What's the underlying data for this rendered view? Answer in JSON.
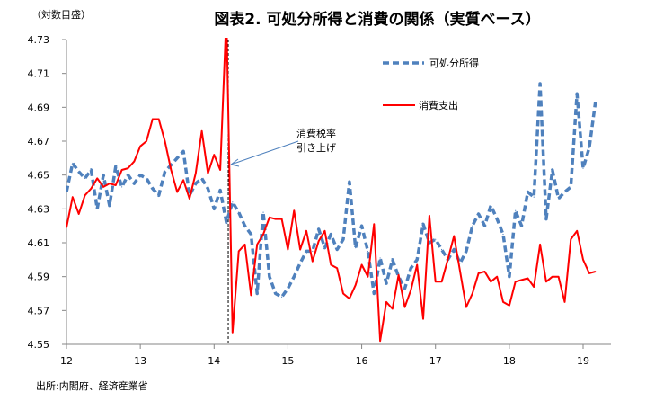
{
  "chart_data": {
    "type": "line",
    "title": "図表2. 可処分所得と消費の関係（実質ベース）",
    "ylabel": "（対数目盛）",
    "xlabel": "",
    "ylim": [
      4.55,
      4.73
    ],
    "yticks": [
      "4.55",
      "4.57",
      "4.59",
      "4.61",
      "4.63",
      "4.65",
      "4.67",
      "4.69",
      "4.71",
      "4.73"
    ],
    "xticks": [
      "12",
      "13",
      "14",
      "15",
      "16",
      "17",
      "18",
      "19"
    ],
    "x_start": "2012-01",
    "frequency": "monthly",
    "grid": false,
    "legend_position": "top-right",
    "series": [
      {
        "name": "可処分所得",
        "color": "#4F81BD",
        "style": "dashed",
        "values": [
          4.64,
          4.657,
          4.652,
          4.648,
          4.653,
          4.63,
          4.65,
          4.632,
          4.655,
          4.643,
          4.65,
          4.645,
          4.65,
          4.648,
          4.642,
          4.638,
          4.652,
          4.656,
          4.66,
          4.664,
          4.638,
          4.645,
          4.648,
          4.642,
          4.63,
          4.641,
          4.622,
          4.634,
          4.628,
          4.62,
          4.615,
          4.58,
          4.628,
          4.59,
          4.58,
          4.578,
          4.583,
          4.59,
          4.598,
          4.605,
          4.605,
          4.618,
          4.607,
          4.615,
          4.606,
          4.612,
          4.646,
          4.607,
          4.62,
          4.605,
          4.58,
          4.601,
          4.586,
          4.6,
          4.59,
          4.583,
          4.595,
          4.6,
          4.621,
          4.61,
          4.612,
          4.606,
          4.6,
          4.606,
          4.598,
          4.605,
          4.62,
          4.627,
          4.62,
          4.632,
          4.624,
          4.615,
          4.59,
          4.629,
          4.62,
          4.64,
          4.637,
          4.704,
          4.624,
          4.653,
          4.636,
          4.64,
          4.643,
          4.698,
          4.654,
          4.666,
          4.693
        ]
      },
      {
        "name": "消費支出",
        "color": "#FF0000",
        "style": "solid",
        "values": [
          4.619,
          4.637,
          4.627,
          4.638,
          4.642,
          4.648,
          4.643,
          4.645,
          4.644,
          4.653,
          4.654,
          4.658,
          4.667,
          4.67,
          4.683,
          4.683,
          4.67,
          4.653,
          4.64,
          4.647,
          4.636,
          4.651,
          4.676,
          4.651,
          4.662,
          4.653,
          4.745,
          4.557,
          4.605,
          4.609,
          4.579,
          4.609,
          4.615,
          4.625,
          4.624,
          4.624,
          4.606,
          4.629,
          4.606,
          4.617,
          4.599,
          4.611,
          4.617,
          4.597,
          4.595,
          4.58,
          4.577,
          4.585,
          4.597,
          4.59,
          4.621,
          4.552,
          4.575,
          4.571,
          4.591,
          4.572,
          4.582,
          4.597,
          4.565,
          4.626,
          4.587,
          4.587,
          4.6,
          4.614,
          4.593,
          4.572,
          4.58,
          4.592,
          4.593,
          4.587,
          4.59,
          4.575,
          4.573,
          4.587,
          4.588,
          4.589,
          4.584,
          4.609,
          4.587,
          4.59,
          4.59,
          4.575,
          4.612,
          4.617,
          4.6,
          4.592,
          4.593
        ]
      }
    ],
    "annotations": [
      {
        "text_line1": "消費税率",
        "text_line2": "引き上げ",
        "at": "2014-04"
      }
    ]
  },
  "source": "出所:内閣府、経済産業省"
}
